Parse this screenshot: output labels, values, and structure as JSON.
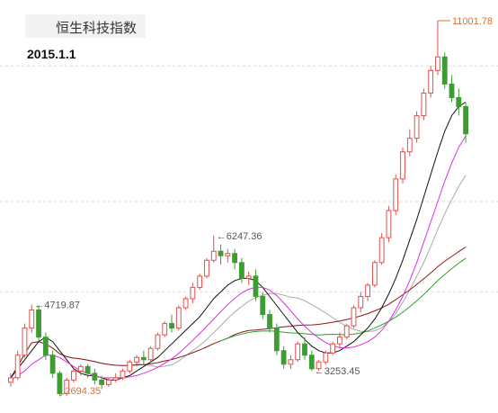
{
  "header": {
    "title": "恒生科技指数",
    "date": "2015.1.1"
  },
  "colors": {
    "up": "#e2504c",
    "down": "#3f9c35",
    "ma_black": "#111111",
    "ma_magenta": "#e030e0",
    "ma_gray": "#aaaaaa",
    "ma_darkred": "#8b1a1a",
    "ma_green": "#2e9e2e",
    "grid": "#d9d9d9",
    "annotation": "#555555",
    "annotation_highlight": "#e0712c"
  },
  "chart_data": {
    "type": "candlestick",
    "title": "恒生科技指数",
    "subtitle": "2015.1.1",
    "ylim": [
      2500,
      11300
    ],
    "grid": true,
    "candles": [
      [
        3000,
        3200,
        3100,
        2900
      ],
      [
        3100,
        3700,
        3600,
        3050
      ],
      [
        3600,
        4300,
        4200,
        3550
      ],
      [
        4200,
        4719.87,
        4600,
        4100
      ],
      [
        4600,
        4700,
        4000,
        3900
      ],
      [
        4000,
        4100,
        3600,
        3500
      ],
      [
        3600,
        3700,
        3200,
        3100
      ],
      [
        3200,
        3250,
        2750,
        2694.35
      ],
      [
        2750,
        3100,
        3050,
        2700
      ],
      [
        3050,
        3300,
        3250,
        3000
      ],
      [
        3250,
        3400,
        3350,
        3150
      ],
      [
        3350,
        3400,
        3200,
        3100
      ],
      [
        3200,
        3300,
        3050,
        2950
      ],
      [
        3050,
        3150,
        2950,
        2850
      ],
      [
        2950,
        3100,
        3050,
        2900
      ],
      [
        3050,
        3200,
        3100,
        3000
      ],
      [
        3100,
        3300,
        3250,
        3050
      ],
      [
        3250,
        3500,
        3450,
        3200
      ],
      [
        3450,
        3600,
        3550,
        3350
      ],
      [
        3550,
        3700,
        3500,
        3400
      ],
      [
        3500,
        3800,
        3750,
        3450
      ],
      [
        3750,
        4100,
        4050,
        3700
      ],
      [
        4050,
        4350,
        4300,
        4000
      ],
      [
        4300,
        4500,
        4200,
        4100
      ],
      [
        4200,
        4700,
        4650,
        4150
      ],
      [
        4650,
        4900,
        4850,
        4600
      ],
      [
        4850,
        5200,
        5100,
        4750
      ],
      [
        5100,
        5400,
        5350,
        5050
      ],
      [
        5350,
        5750,
        5700,
        5300
      ],
      [
        5700,
        6247.36,
        5900,
        5650
      ],
      [
        5900,
        6050,
        5800,
        5600
      ],
      [
        5800,
        5950,
        5850,
        5650
      ],
      [
        5850,
        5950,
        5650,
        5500
      ],
      [
        5650,
        5750,
        5300,
        5200
      ],
      [
        5300,
        5450,
        5350,
        5150
      ],
      [
        5350,
        5500,
        4900,
        4800
      ],
      [
        4900,
        5000,
        4500,
        4400
      ],
      [
        4500,
        4600,
        4200,
        4100
      ],
      [
        4200,
        4300,
        3700,
        3600
      ],
      [
        3700,
        3800,
        3400,
        3300
      ],
      [
        3400,
        3600,
        3500,
        3300
      ],
      [
        3500,
        3900,
        3850,
        3450
      ],
      [
        3850,
        4000,
        3600,
        3500
      ],
      [
        3600,
        3700,
        3300,
        3253.45
      ],
      [
        3300,
        3500,
        3450,
        3250
      ],
      [
        3450,
        3700,
        3650,
        3400
      ],
      [
        3650,
        3900,
        3850,
        3600
      ],
      [
        3850,
        4100,
        4000,
        3750
      ],
      [
        4000,
        4300,
        4250,
        3950
      ],
      [
        4250,
        4700,
        4650,
        4200
      ],
      [
        4650,
        5000,
        4900,
        4550
      ],
      [
        4900,
        5200,
        5150,
        4800
      ],
      [
        5150,
        5700,
        5650,
        5100
      ],
      [
        5650,
        6300,
        6200,
        5600
      ],
      [
        6200,
        6900,
        6800,
        6100
      ],
      [
        6800,
        7600,
        7500,
        6700
      ],
      [
        7500,
        8200,
        8100,
        7400
      ],
      [
        8100,
        8600,
        8400,
        8000
      ],
      [
        8400,
        9000,
        8900,
        8300
      ],
      [
        8900,
        9500,
        9400,
        8800
      ],
      [
        9400,
        10000,
        9900,
        9300
      ],
      [
        9900,
        11001.78,
        10200,
        9800
      ],
      [
        10200,
        10300,
        9600,
        9500
      ],
      [
        9600,
        9800,
        9300,
        9200
      ],
      [
        9300,
        9500,
        9100,
        8900
      ],
      [
        9100,
        9200,
        8500,
        8300
      ]
    ],
    "ma_lines": [
      {
        "color": "black",
        "values": [
          3100,
          3300,
          3500,
          3700,
          3900,
          4000,
          3900,
          3700,
          3500,
          3300,
          3200,
          3150,
          3150,
          3100,
          3050,
          3050,
          3100,
          3150,
          3250,
          3350,
          3450,
          3550,
          3700,
          3850,
          4000,
          4150,
          4300,
          4450,
          4650,
          4850,
          5000,
          5150,
          5250,
          5300,
          5300,
          5250,
          5100,
          4900,
          4700,
          4500,
          4300,
          4100,
          3950,
          3800,
          3700,
          3650,
          3650,
          3700,
          3800,
          3900,
          4050,
          4200,
          4400,
          4650,
          4950,
          5300,
          5700,
          6150,
          6600,
          7100,
          7600,
          8100,
          8550,
          8900,
          9100,
          9200
        ]
      },
      {
        "color": "magenta",
        "values": [
          3050,
          3150,
          3250,
          3400,
          3500,
          3600,
          3600,
          3550,
          3450,
          3350,
          3250,
          3200,
          3150,
          3100,
          3100,
          3100,
          3100,
          3120,
          3150,
          3200,
          3260,
          3330,
          3420,
          3520,
          3640,
          3780,
          3930,
          4080,
          4240,
          4400,
          4560,
          4720,
          4860,
          4980,
          5060,
          5100,
          5100,
          5040,
          4920,
          4760,
          4580,
          4400,
          4240,
          4100,
          3980,
          3880,
          3810,
          3770,
          3760,
          3780,
          3830,
          3900,
          4000,
          4150,
          4350,
          4600,
          4900,
          5250,
          5650,
          6100,
          6550,
          7000,
          7450,
          7850,
          8200,
          8450
        ]
      }
    ],
    "annotations": [
      {
        "text": "←4719.87",
        "value": 4719.87
      },
      {
        "text": "2694.35",
        "value": 2694.35
      },
      {
        "text": "←6247.36",
        "value": 6247.36
      },
      {
        "text": "←3253.45",
        "value": 3253.45
      },
      {
        "text": "11001.78",
        "value": 11001.78
      }
    ]
  }
}
